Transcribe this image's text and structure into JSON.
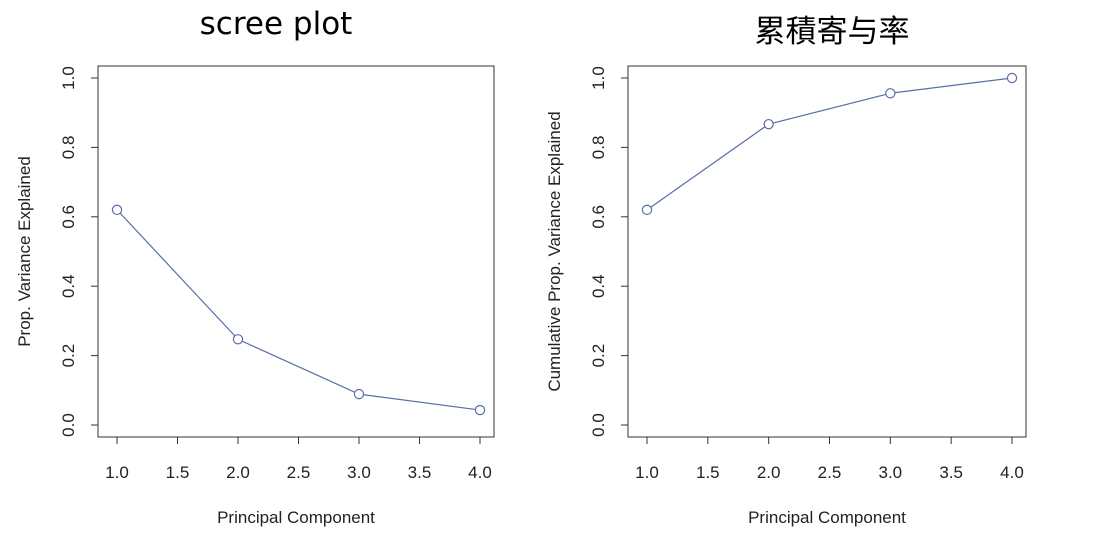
{
  "chart_data": [
    {
      "type": "line",
      "title": "scree plot",
      "xlabel": "Principal Component",
      "ylabel": "Prop. Variance Explained",
      "xlim": [
        1.0,
        4.0
      ],
      "ylim": [
        0.0,
        1.0
      ],
      "xticks": [
        "1.0",
        "1.5",
        "2.0",
        "2.5",
        "3.0",
        "3.5",
        "4.0"
      ],
      "yticks": [
        "0.0",
        "0.2",
        "0.4",
        "0.6",
        "0.8",
        "1.0"
      ],
      "x": [
        1,
        2,
        3,
        4
      ],
      "series": [
        {
          "values": [
            0.62,
            0.247,
            0.089,
            0.043
          ]
        }
      ],
      "line_color": "#5A6EA8",
      "grid": false
    },
    {
      "type": "line",
      "title": "累積寄与率",
      "xlabel": "Principal Component",
      "ylabel": "Cumulative Prop. Variance Explained",
      "xlim": [
        1.0,
        4.0
      ],
      "ylim": [
        0.0,
        1.0
      ],
      "xticks": [
        "1.0",
        "1.5",
        "2.0",
        "2.5",
        "3.0",
        "3.5",
        "4.0"
      ],
      "yticks": [
        "0.0",
        "0.2",
        "0.4",
        "0.6",
        "0.8",
        "1.0"
      ],
      "x": [
        1,
        2,
        3,
        4
      ],
      "series": [
        {
          "values": [
            0.62,
            0.867,
            0.956,
            1.0
          ]
        }
      ],
      "line_color": "#5A6EA8",
      "grid": false
    }
  ]
}
